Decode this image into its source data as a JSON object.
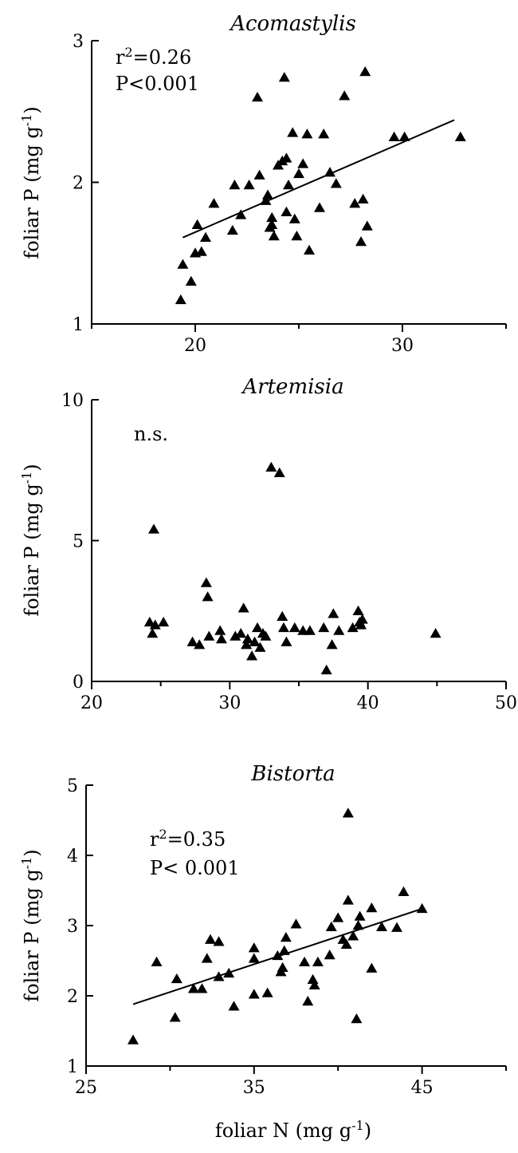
{
  "chart_data": [
    {
      "type": "scatter",
      "title": "Acomastylis",
      "xlabel": "",
      "ylabel": "foliar P (mg g",
      "ylabel_sup": "-1",
      "ylabel_suffix": ")",
      "xlim": [
        15,
        35
      ],
      "ylim": [
        1,
        3
      ],
      "xticks": [
        20,
        30
      ],
      "yticks": [
        1,
        2,
        3
      ],
      "grid": false,
      "annotations": [
        {
          "parts": [
            {
              "text": "r"
            },
            {
              "sup": "2"
            },
            {
              "text": "=0.26"
            }
          ]
        },
        {
          "parts": [
            {
              "text": "P<0.001"
            }
          ]
        }
      ],
      "regression": [
        [
          19.4,
          1.61
        ],
        [
          32.5,
          2.44
        ]
      ],
      "x": [
        19.3,
        19.4,
        19.8,
        20.0,
        20.1,
        20.3,
        20.5,
        20.9,
        21.8,
        21.9,
        22.2,
        22.6,
        23.0,
        23.1,
        23.4,
        23.5,
        23.6,
        23.7,
        23.7,
        23.8,
        24.0,
        24.2,
        24.3,
        24.4,
        24.4,
        24.5,
        24.7,
        24.8,
        24.9,
        25.0,
        25.2,
        25.4,
        25.5,
        26.0,
        26.2,
        26.5,
        26.8,
        27.2,
        27.7,
        28.0,
        28.1,
        28.2,
        28.3,
        29.6,
        30.1,
        32.8
      ],
      "y": [
        1.17,
        1.42,
        1.3,
        1.5,
        1.7,
        1.51,
        1.61,
        1.85,
        1.66,
        1.98,
        1.77,
        1.98,
        2.6,
        2.05,
        1.87,
        1.91,
        1.68,
        1.7,
        1.75,
        1.62,
        2.12,
        2.15,
        2.74,
        2.17,
        1.79,
        1.98,
        2.35,
        1.74,
        1.62,
        2.06,
        2.13,
        2.34,
        1.52,
        1.82,
        2.34,
        2.07,
        1.99,
        2.61,
        1.85,
        1.58,
        1.88,
        2.78,
        1.69,
        2.32,
        2.32,
        2.32
      ]
    },
    {
      "type": "scatter",
      "title": "Artemisia",
      "xlabel": "",
      "ylabel": "foliar P (mg g",
      "ylabel_sup": "-1",
      "ylabel_suffix": ")",
      "xlim": [
        20,
        50
      ],
      "ylim": [
        0,
        10
      ],
      "xticks": [
        20,
        30,
        40,
        50
      ],
      "yticks": [
        0,
        5,
        10
      ],
      "grid": false,
      "annotations": [
        {
          "parts": [
            {
              "text": "n.s."
            }
          ]
        }
      ],
      "regression": null,
      "x": [
        24.2,
        24.4,
        24.5,
        24.6,
        25.2,
        27.3,
        27.8,
        28.3,
        28.4,
        28.5,
        29.3,
        29.4,
        30.4,
        30.8,
        31.0,
        31.2,
        31.3,
        31.6,
        31.8,
        32.0,
        32.2,
        32.4,
        32.6,
        33.0,
        33.6,
        33.8,
        33.9,
        34.1,
        34.7,
        35.3,
        35.8,
        36.8,
        37.0,
        37.4,
        37.5,
        37.9,
        38.9,
        39.3,
        39.4,
        39.5,
        39.6,
        44.9
      ],
      "y": [
        2.1,
        1.7,
        5.4,
        2.0,
        2.1,
        1.4,
        1.3,
        3.5,
        3.0,
        1.6,
        1.8,
        1.5,
        1.6,
        1.7,
        2.6,
        1.3,
        1.5,
        0.9,
        1.4,
        1.9,
        1.2,
        1.7,
        1.6,
        7.6,
        7.4,
        2.3,
        1.9,
        1.4,
        1.9,
        1.8,
        1.8,
        1.9,
        0.4,
        1.3,
        2.4,
        1.8,
        1.9,
        2.5,
        2.1,
        2.0,
        2.2,
        1.7
      ]
    },
    {
      "type": "scatter",
      "title": "Bistorta",
      "xlabel": "foliar N (mg g",
      "xlabel_sup": "-1",
      "xlabel_suffix": ")",
      "ylabel": "foliar P (mg g",
      "ylabel_sup": "-1",
      "ylabel_suffix": ")",
      "xlim": [
        25,
        50
      ],
      "ylim": [
        1,
        5
      ],
      "xticks": [
        25,
        35,
        45
      ],
      "yticks": [
        1,
        2,
        3,
        4,
        5
      ],
      "grid": false,
      "annotations": [
        {
          "parts": [
            {
              "text": "r"
            },
            {
              "sup": "2"
            },
            {
              "text": "=0.35"
            }
          ]
        },
        {
          "parts": [
            {
              "text": "P< 0.001"
            }
          ]
        }
      ],
      "regression": [
        [
          27.8,
          1.88
        ],
        [
          45.0,
          3.24
        ]
      ],
      "x": [
        27.8,
        29.2,
        30.4,
        30.3,
        31.4,
        31.9,
        32.2,
        32.4,
        32.9,
        32.9,
        33.5,
        33.8,
        35.0,
        35.0,
        35.0,
        35.8,
        36.4,
        36.6,
        36.7,
        36.8,
        36.9,
        37.5,
        38.0,
        38.2,
        38.5,
        38.6,
        38.8,
        39.5,
        39.6,
        40.0,
        40.3,
        40.5,
        40.6,
        40.6,
        40.9,
        41.1,
        41.2,
        41.3,
        42.0,
        42.0,
        42.6,
        43.5,
        43.9,
        45.0
      ],
      "y": [
        1.37,
        2.48,
        2.24,
        1.69,
        2.1,
        2.1,
        2.53,
        2.8,
        2.27,
        2.77,
        2.32,
        1.85,
        2.02,
        2.53,
        2.68,
        2.04,
        2.57,
        2.34,
        2.4,
        2.64,
        2.83,
        3.02,
        2.48,
        1.92,
        2.23,
        2.15,
        2.48,
        2.58,
        2.98,
        3.11,
        2.8,
        2.73,
        3.36,
        4.6,
        2.85,
        1.67,
        3.0,
        3.13,
        2.39,
        3.25,
        2.98,
        2.97,
        3.48,
        3.24
      ]
    }
  ]
}
